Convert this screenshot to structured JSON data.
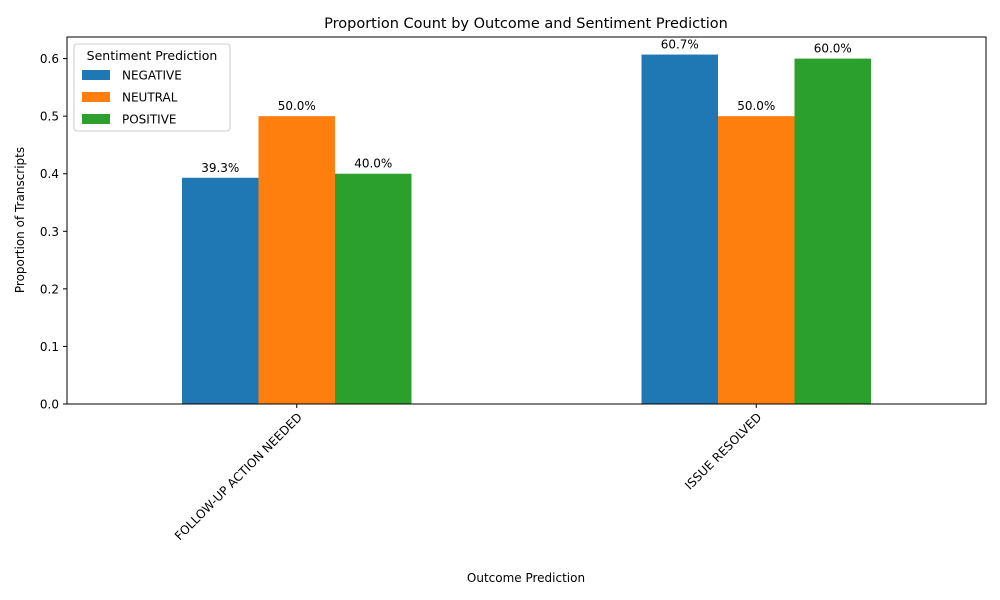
{
  "chart_data": {
    "type": "bar",
    "title": "Proportion Count by Outcome and Sentiment Prediction",
    "xlabel": "Outcome Prediction",
    "ylabel": "Proportion of Transcripts",
    "categories": [
      "FOLLOW-UP ACTION NEEDED",
      "ISSUE RESOLVED"
    ],
    "series": [
      {
        "name": "NEGATIVE",
        "color": "#1f77b4",
        "values": [
          0.393,
          0.607
        ],
        "labels": [
          "39.3%",
          "60.7%"
        ]
      },
      {
        "name": "NEUTRAL",
        "color": "#ff7f0e",
        "values": [
          0.5,
          0.5
        ],
        "labels": [
          "50.0%",
          "50.0%"
        ]
      },
      {
        "name": "POSITIVE",
        "color": "#2ca02c",
        "values": [
          0.4,
          0.6
        ],
        "labels": [
          "40.0%",
          "60.0%"
        ]
      }
    ],
    "ylim": [
      0,
      0.6375
    ],
    "yticks": [
      "0.0",
      "0.1",
      "0.2",
      "0.3",
      "0.4",
      "0.5",
      "0.6"
    ],
    "ytick_values": [
      0,
      0.1,
      0.2,
      0.3,
      0.4,
      0.5,
      0.6
    ],
    "legend": {
      "title": "Sentiment Prediction",
      "position": "top-left"
    },
    "grid": false
  }
}
